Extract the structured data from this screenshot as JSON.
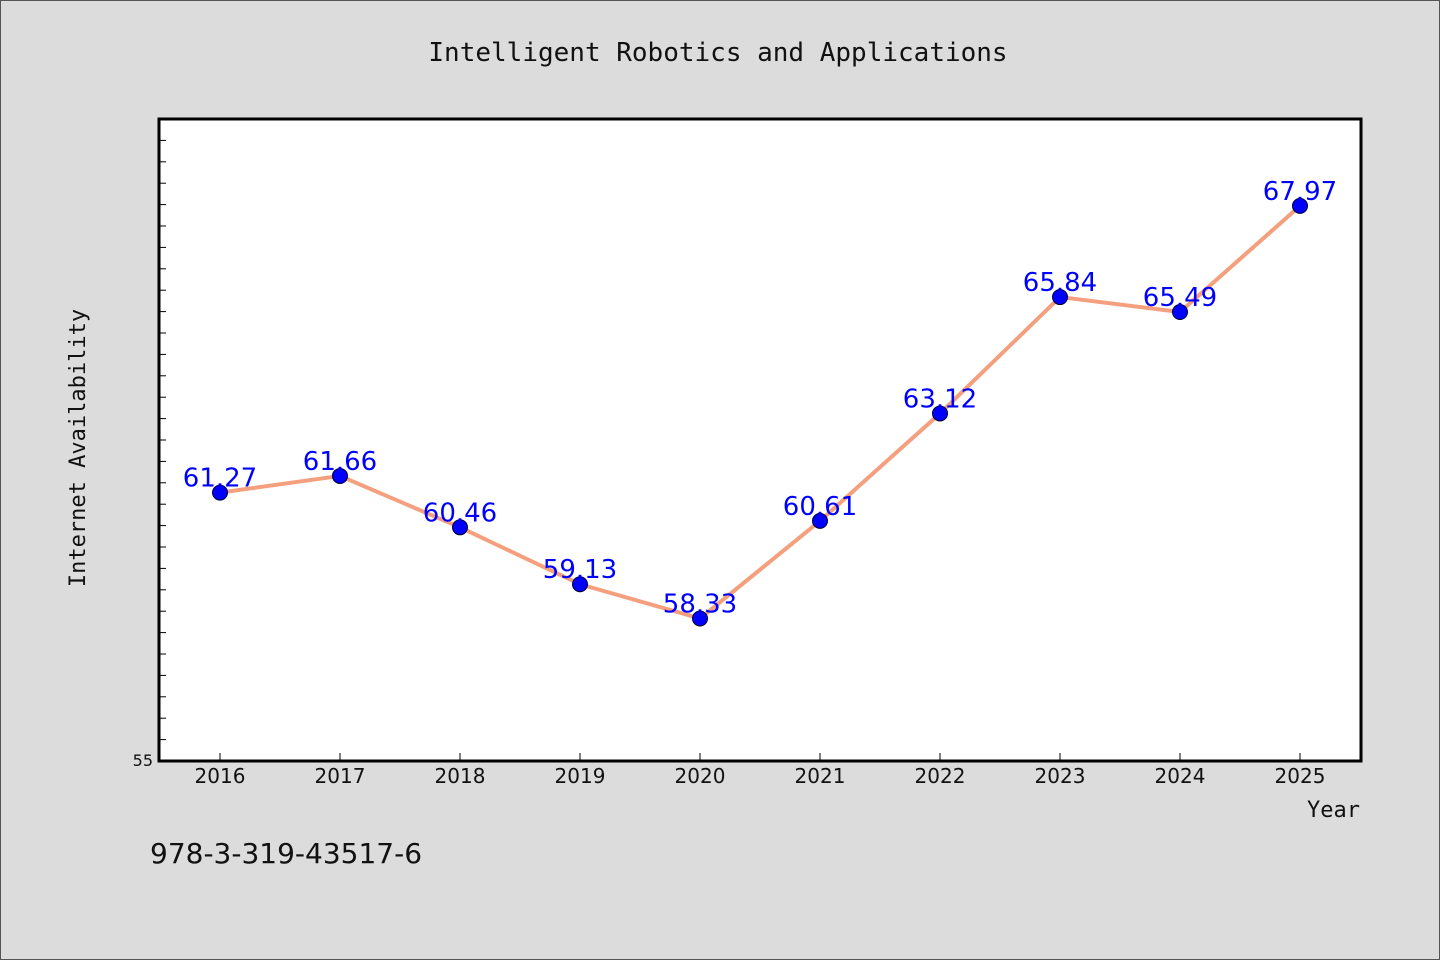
{
  "colors": {
    "background": "#dcdcdc",
    "plot_background": "#ffffff",
    "line": "#f4a07e",
    "marker": "#0000ff",
    "data_label": "#0000ff"
  },
  "footer_text": "978-3-319-43517-6",
  "chart_data": {
    "type": "line",
    "title": "Intelligent Robotics and Applications",
    "xlabel": "Year",
    "ylabel": "Internet Availability",
    "categories": [
      "2016",
      "2017",
      "2018",
      "2019",
      "2020",
      "2021",
      "2022",
      "2023",
      "2024",
      "2025"
    ],
    "series": [
      {
        "values": [
          61.27,
          61.66,
          60.46,
          59.13,
          58.33,
          60.61,
          63.12,
          65.84,
          65.49,
          67.97
        ],
        "data_labels": [
          "61.27",
          "61.66",
          "60.46",
          "59.13",
          "58.33",
          "60.61",
          "63.12",
          "65.84",
          "65.49",
          "67.97"
        ]
      }
    ],
    "ylim": [
      55,
      70
    ],
    "y_tick_label": "55",
    "grid": false
  }
}
